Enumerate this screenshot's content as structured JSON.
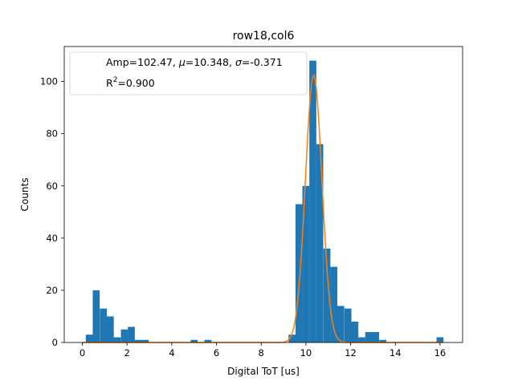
{
  "chart_data": {
    "type": "bar",
    "title": "row18,col6",
    "xlabel": "Digital ToT [us]",
    "ylabel": "Counts",
    "xlim": [
      -0.81,
      17.01
    ],
    "ylim": [
      0,
      113.4
    ],
    "xticks": [
      0,
      2,
      4,
      6,
      8,
      10,
      12,
      14,
      16
    ],
    "yticks": [
      0,
      20,
      40,
      60,
      80,
      100
    ],
    "bin_width": 0.3125,
    "histogram": {
      "name": "",
      "color": "#1f77b4",
      "bins": [
        {
          "x": 0.31,
          "y": 3
        },
        {
          "x": 0.62,
          "y": 20
        },
        {
          "x": 0.94,
          "y": 13
        },
        {
          "x": 1.25,
          "y": 10
        },
        {
          "x": 1.56,
          "y": 2
        },
        {
          "x": 1.88,
          "y": 5
        },
        {
          "x": 2.19,
          "y": 6
        },
        {
          "x": 2.5,
          "y": 1
        },
        {
          "x": 2.81,
          "y": 1
        },
        {
          "x": 5.0,
          "y": 1
        },
        {
          "x": 5.62,
          "y": 1
        },
        {
          "x": 9.38,
          "y": 3
        },
        {
          "x": 9.69,
          "y": 53
        },
        {
          "x": 10.0,
          "y": 60
        },
        {
          "x": 10.31,
          "y": 108
        },
        {
          "x": 10.62,
          "y": 76
        },
        {
          "x": 10.94,
          "y": 36
        },
        {
          "x": 11.25,
          "y": 29
        },
        {
          "x": 11.56,
          "y": 14
        },
        {
          "x": 11.88,
          "y": 13
        },
        {
          "x": 12.19,
          "y": 8
        },
        {
          "x": 12.5,
          "y": 2
        },
        {
          "x": 12.81,
          "y": 4
        },
        {
          "x": 13.12,
          "y": 4
        },
        {
          "x": 13.44,
          "y": 1
        },
        {
          "x": 16.0,
          "y": 2
        }
      ]
    },
    "fit": {
      "name": "",
      "color": "#ff7f0e",
      "amp": 102.47,
      "mu": 10.348,
      "sigma": 0.371,
      "x_range": [
        0,
        16.1
      ]
    },
    "legend": {
      "placement": "top-left",
      "entries": [
        "Amp=102.47, ",
        "μ",
        "=10.348, ",
        "σ",
        "=-0.371",
        "R",
        "2",
        "=0.900"
      ]
    }
  }
}
